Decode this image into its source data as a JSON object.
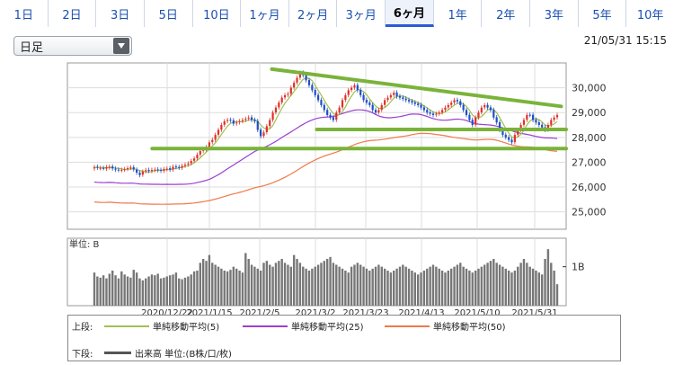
{
  "tabs": [
    {
      "label": "1日",
      "active": false
    },
    {
      "label": "2日",
      "active": false
    },
    {
      "label": "3日",
      "active": false
    },
    {
      "label": "5日",
      "active": false
    },
    {
      "label": "10日",
      "active": false
    },
    {
      "label": "1ヶ月",
      "active": false
    },
    {
      "label": "2ヶ月",
      "active": false
    },
    {
      "label": "3ヶ月",
      "active": false
    },
    {
      "label": "6ヶ月",
      "active": true
    },
    {
      "label": "1年",
      "active": false
    },
    {
      "label": "2年",
      "active": false
    },
    {
      "label": "3年",
      "active": false
    },
    {
      "label": "5年",
      "active": false
    },
    {
      "label": "10年",
      "active": false
    }
  ],
  "period_select": {
    "value": "日足"
  },
  "timestamp": "21/05/31 15:15",
  "colors": {
    "up": "#e0302a",
    "down": "#1f4fc8",
    "ma5": "#a0c050",
    "ma25": "#9b3fd4",
    "ma50": "#f07a4a",
    "trend": "#7ab33a",
    "volume": "#777777"
  },
  "chart_data": {
    "type": "candlestick",
    "y_ticks": [
      "30,000",
      "29,000",
      "28,000",
      "27,000",
      "26,000",
      "25,000"
    ],
    "ylim": [
      24300,
      31000
    ],
    "x_ticks": [
      "2020/12/22",
      "2021/1/15",
      "2021/2/5",
      "2021/3/2",
      "2021/3/23",
      "2021/4/13",
      "2021/5/10",
      "2021/5/31"
    ],
    "close": [
      26800,
      26780,
      26770,
      26760,
      26800,
      26820,
      26750,
      26700,
      26690,
      26690,
      26720,
      26760,
      26790,
      26710,
      26580,
      26480,
      26620,
      26680,
      26650,
      26690,
      26700,
      26680,
      26660,
      26720,
      26740,
      26700,
      26820,
      26800,
      26780,
      26850,
      26900,
      26950,
      27050,
      27150,
      27300,
      27450,
      27520,
      27600,
      27800,
      27900,
      28100,
      28300,
      28500,
      28650,
      28700,
      28680,
      28550,
      28600,
      28650,
      28700,
      28750,
      28800,
      28700,
      28650,
      28300,
      28050,
      28200,
      28450,
      28700,
      29000,
      29200,
      29400,
      29600,
      29700,
      29750,
      30000,
      30200,
      30400,
      30600,
      30500,
      30300,
      30100,
      29900,
      29700,
      29500,
      29300,
      29100,
      28900,
      28800,
      28700,
      29000,
      29200,
      29500,
      29700,
      29900,
      30000,
      30100,
      29900,
      29700,
      29500,
      29400,
      29300,
      29100,
      29000,
      29100,
      29300,
      29500,
      29600,
      29700,
      29800,
      29650,
      29600,
      29550,
      29500,
      29450,
      29400,
      29350,
      29300,
      29200,
      29100,
      29000,
      28950,
      28900,
      28950,
      29000,
      29100,
      29200,
      29300,
      29400,
      29500,
      29450,
      29300,
      29100,
      28900,
      28700,
      28500,
      28800,
      29000,
      29200,
      29300,
      29200,
      29100,
      28800,
      28600,
      28300,
      28100,
      28000,
      27900,
      27800,
      28100,
      28300,
      28500,
      28700,
      28900,
      28900,
      28700,
      28600,
      28500,
      28400,
      28300,
      28500,
      28700,
      28800,
      28900
    ],
    "open": [
      26750,
      26820,
      26760,
      26770,
      26740,
      26790,
      26830,
      26740,
      26700,
      26680,
      26700,
      26730,
      26780,
      26800,
      26700,
      26580,
      26500,
      26640,
      26690,
      26650,
      26690,
      26710,
      26690,
      26660,
      26720,
      26760,
      26710,
      26830,
      26810,
      26780,
      26860,
      26910,
      26960,
      27060,
      27160,
      27310,
      27460,
      27520,
      27620,
      27810,
      27910,
      28110,
      28310,
      28510,
      28660,
      28710,
      28690,
      28560,
      28610,
      28660,
      28710,
      28760,
      28810,
      28710,
      28660,
      28310,
      28060,
      28210,
      28460,
      28710,
      29010,
      29210,
      29410,
      29610,
      29710,
      29760,
      30010,
      30210,
      30410,
      30610,
      30510,
      30310,
      30110,
      29910,
      29710,
      29510,
      29310,
      29110,
      28910,
      28810,
      28710,
      29010,
      29210,
      29510,
      29710,
      29910,
      30010,
      30110,
      29910,
      29710,
      29510,
      29410,
      29310,
      29110,
      29010,
      29110,
      29310,
      29510,
      29610,
      29710,
      29810,
      29660,
      29610,
      29560,
      29510,
      29460,
      29410,
      29360,
      29310,
      29210,
      29110,
      29010,
      28960,
      28910,
      28960,
      29010,
      29110,
      29210,
      29310,
      29410,
      29510,
      29460,
      29310,
      29110,
      28910,
      28710,
      28510,
      28810,
      29010,
      29210,
      29310,
      29210,
      29110,
      28810,
      28610,
      28310,
      28110,
      28010,
      27910,
      27810,
      28110,
      28310,
      28510,
      28710,
      28910,
      28910,
      28710,
      28610,
      28510,
      28410,
      28310,
      28510,
      28710,
      28810
    ],
    "volume": [
      0.85,
      0.75,
      0.72,
      0.78,
      0.7,
      0.82,
      0.9,
      0.78,
      0.7,
      0.88,
      0.8,
      0.75,
      0.72,
      0.92,
      0.85,
      0.7,
      0.65,
      0.7,
      0.75,
      0.8,
      0.78,
      0.82,
      0.7,
      0.72,
      0.75,
      0.78,
      0.8,
      0.85,
      0.7,
      0.68,
      0.72,
      0.75,
      0.8,
      0.88,
      0.9,
      1.1,
      1.2,
      1.15,
      1.3,
      1.1,
      1.05,
      1.0,
      0.95,
      0.9,
      0.88,
      0.92,
      1.0,
      0.95,
      0.9,
      0.85,
      1.35,
      1.2,
      1.05,
      1.0,
      0.95,
      0.9,
      1.1,
      1.15,
      1.05,
      1.0,
      1.1,
      1.15,
      1.2,
      1.1,
      1.05,
      1.0,
      1.3,
      1.2,
      1.1,
      1.0,
      0.95,
      0.9,
      0.95,
      1.0,
      1.05,
      1.1,
      1.15,
      1.2,
      1.25,
      1.1,
      1.05,
      1.0,
      0.95,
      0.9,
      0.85,
      1.0,
      1.05,
      1.1,
      1.05,
      1.0,
      0.95,
      0.9,
      0.95,
      1.0,
      1.05,
      1.0,
      0.95,
      0.9,
      0.85,
      0.9,
      0.95,
      1.0,
      1.05,
      1.0,
      0.95,
      0.9,
      0.85,
      0.8,
      0.85,
      0.9,
      0.95,
      1.0,
      1.05,
      1.0,
      0.95,
      0.9,
      0.85,
      0.9,
      0.95,
      1.0,
      1.05,
      1.1,
      1.0,
      0.95,
      0.9,
      0.85,
      0.9,
      0.95,
      1.0,
      1.05,
      1.1,
      1.15,
      1.2,
      1.1,
      1.05,
      1.0,
      0.95,
      0.9,
      0.85,
      0.9,
      1.0,
      1.1,
      1.2,
      1.1,
      1.0,
      0.95,
      0.9,
      0.85,
      0.8,
      1.2,
      1.45,
      1.1,
      0.9,
      0.55
    ],
    "trendlines": [
      {
        "from": [
          0.41,
          30750
        ],
        "to": [
          0.99,
          29250
        ]
      },
      {
        "from": [
          0.5,
          28320
        ],
        "to": [
          1.0,
          28320
        ]
      },
      {
        "from": [
          0.17,
          27550
        ],
        "to": [
          1.0,
          27550
        ]
      }
    ],
    "volume_tick": "1B",
    "volume_label": "単位: B"
  },
  "legend": {
    "upper_label": "上段:",
    "lower_label": "下段:",
    "ma5": "単純移動平均(5)",
    "ma25": "単純移動平均(25)",
    "ma50": "単純移動平均(50)",
    "volume": "出来高 単位:(B株/口/枚)"
  }
}
